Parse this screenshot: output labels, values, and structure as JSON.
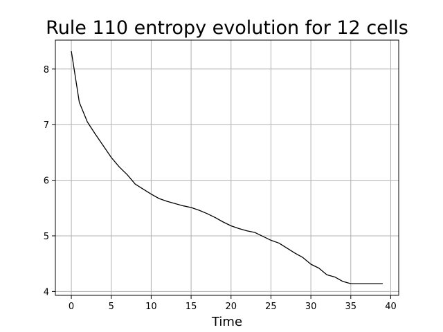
{
  "chart_data": {
    "type": "line",
    "title": "Rule 110 entropy evolution for 12 cells",
    "xlabel": "Time",
    "ylabel": "",
    "xlim": [
      -2,
      41
    ],
    "ylim": [
      3.93,
      8.52
    ],
    "xticks": [
      0,
      5,
      10,
      15,
      20,
      25,
      30,
      35,
      40
    ],
    "yticks": [
      4,
      5,
      6,
      7,
      8
    ],
    "grid": true,
    "line_color": "#000000",
    "grid_color": "#b0b0b0",
    "series": [
      {
        "x": [
          0,
          1,
          2,
          3,
          4,
          5,
          6,
          7,
          8,
          9,
          10,
          11,
          12,
          13,
          14,
          15,
          16,
          17,
          18,
          19,
          20,
          21,
          22,
          23,
          24,
          25,
          26,
          27,
          28,
          29,
          30,
          31,
          32,
          33,
          34,
          35,
          36,
          37,
          38,
          39
        ],
        "values": [
          8.32,
          7.4,
          7.05,
          6.83,
          6.62,
          6.41,
          6.24,
          6.1,
          5.93,
          5.84,
          5.75,
          5.67,
          5.62,
          5.58,
          5.54,
          5.51,
          5.46,
          5.4,
          5.33,
          5.25,
          5.18,
          5.13,
          5.09,
          5.06,
          4.99,
          4.92,
          4.87,
          4.78,
          4.69,
          4.61,
          4.49,
          4.42,
          4.3,
          4.26,
          4.18,
          4.14,
          4.14,
          4.14,
          4.14,
          4.14
        ]
      }
    ]
  }
}
